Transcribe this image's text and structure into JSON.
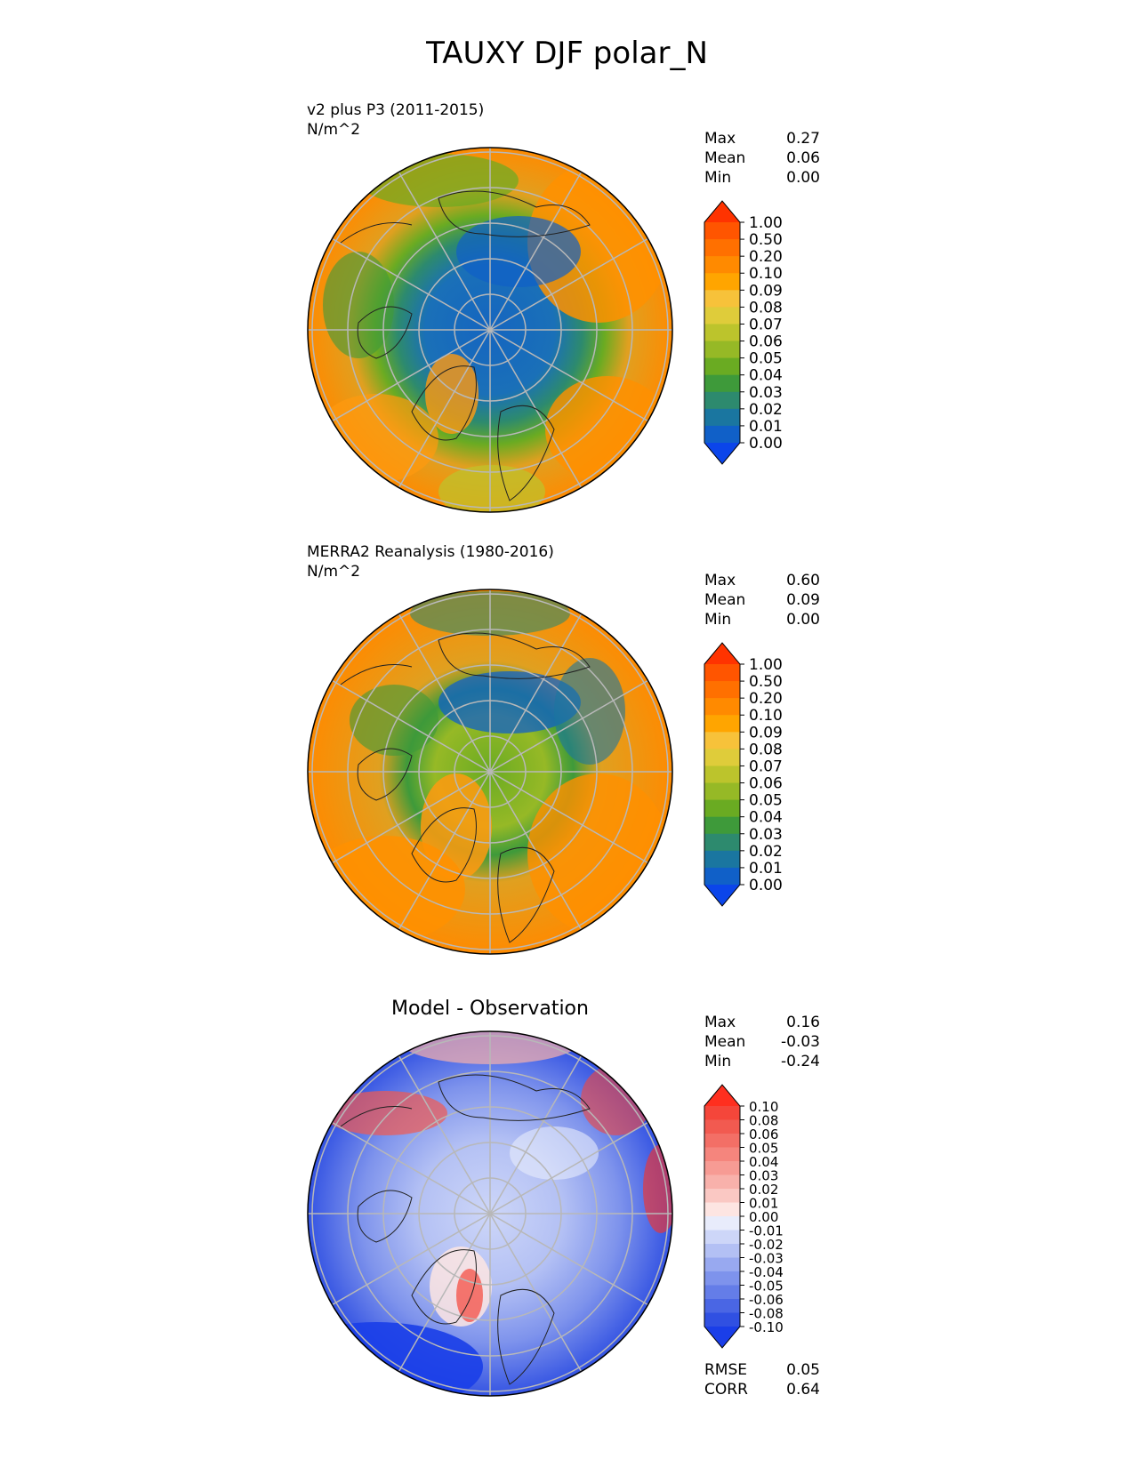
{
  "figure": {
    "title": "TAUXY DJF polar_N"
  },
  "chart_data": [
    {
      "type": "heatmap",
      "projection": "polar stereographic, North Pole",
      "title": "v2 plus P3 (2011-2015)",
      "units": "N/m^2",
      "stats": [
        {
          "label": "Max",
          "value": "0.27"
        },
        {
          "label": "Mean",
          "value": "0.06"
        },
        {
          "label": "Min",
          "value": "0.00"
        }
      ],
      "colorbar": {
        "levels": [
          "1.00",
          "0.50",
          "0.20",
          "0.10",
          "0.09",
          "0.08",
          "0.07",
          "0.06",
          "0.05",
          "0.04",
          "0.03",
          "0.02",
          "0.01",
          "0.00"
        ],
        "colors": [
          "#ff3300",
          "#ff5500",
          "#ff7000",
          "#ff8a00",
          "#ffa500",
          "#f7c23a",
          "#dfcc3a",
          "#bcc42c",
          "#96b926",
          "#6aab22",
          "#3e9a3a",
          "#2d8a6e",
          "#1a76a0",
          "#1060c8",
          "#0b45ea"
        ],
        "extend": "both"
      }
    },
    {
      "type": "heatmap",
      "projection": "polar stereographic, North Pole",
      "title": "MERRA2 Reanalysis (1980-2016)",
      "units": "N/m^2",
      "stats": [
        {
          "label": "Max",
          "value": "0.60"
        },
        {
          "label": "Mean",
          "value": "0.09"
        },
        {
          "label": "Min",
          "value": "0.00"
        }
      ],
      "colorbar": {
        "levels": [
          "1.00",
          "0.50",
          "0.20",
          "0.10",
          "0.09",
          "0.08",
          "0.07",
          "0.06",
          "0.05",
          "0.04",
          "0.03",
          "0.02",
          "0.01",
          "0.00"
        ],
        "colors": [
          "#ff3300",
          "#ff5500",
          "#ff7000",
          "#ff8a00",
          "#ffa500",
          "#f7c23a",
          "#dfcc3a",
          "#bcc42c",
          "#96b926",
          "#6aab22",
          "#3e9a3a",
          "#2d8a6e",
          "#1a76a0",
          "#1060c8",
          "#0b45ea"
        ],
        "extend": "both"
      }
    },
    {
      "type": "heatmap",
      "projection": "polar stereographic, North Pole",
      "title": "Model - Observation",
      "stats": [
        {
          "label": "Max",
          "value": "0.16"
        },
        {
          "label": "Mean",
          "value": "-0.03"
        },
        {
          "label": "Min",
          "value": "-0.24"
        }
      ],
      "metrics": [
        {
          "label": "RMSE",
          "value": "0.05"
        },
        {
          "label": "CORR",
          "value": "0.64"
        }
      ],
      "colorbar": {
        "levels": [
          "0.10",
          "0.08",
          "0.06",
          "0.05",
          "0.04",
          "0.03",
          "0.02",
          "0.01",
          "0.00",
          "-0.01",
          "-0.02",
          "-0.03",
          "-0.04",
          "-0.05",
          "-0.06",
          "-0.08",
          "-0.10"
        ],
        "colors": [
          "#ff2f1f",
          "#f5463a",
          "#f25a50",
          "#f36f66",
          "#f5857d",
          "#f79b94",
          "#f8b1ab",
          "#fac8c3",
          "#fde5e2",
          "#e8ecfb",
          "#cdd6f8",
          "#b3c0f4",
          "#98a9f0",
          "#7e93ec",
          "#647de8",
          "#4a66e4",
          "#3050e2",
          "#1a3ee8"
        ],
        "extend": "both"
      }
    }
  ]
}
